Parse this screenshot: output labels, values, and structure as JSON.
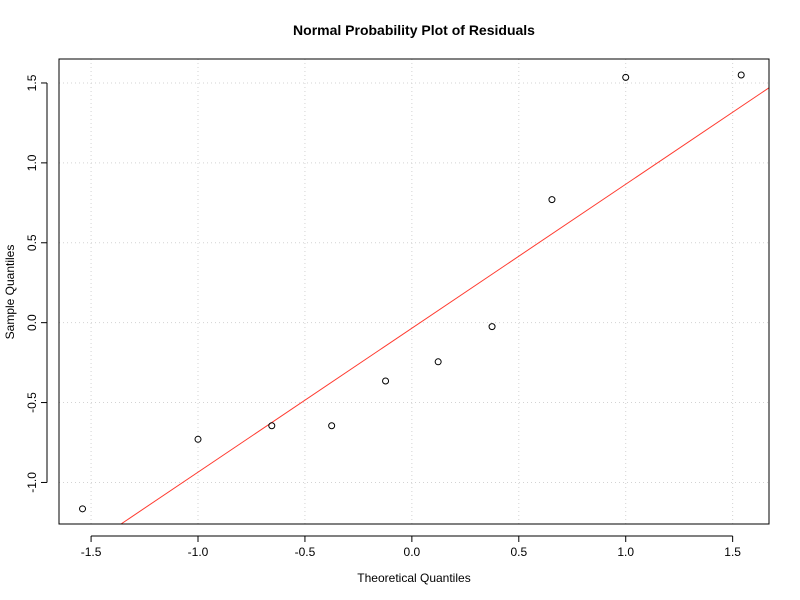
{
  "chart_data": {
    "type": "scatter",
    "title": "Normal Probability Plot of Residuals",
    "xlabel": "Theoretical Quantiles",
    "ylabel": "Sample Quantiles",
    "xlim": [
      -1.65,
      1.67
    ],
    "ylim": [
      -1.26,
      1.65
    ],
    "xticks": [
      -1.5,
      -1.0,
      -0.5,
      0.0,
      0.5,
      1.0,
      1.5
    ],
    "xtick_labels": [
      "-1.5",
      "-1.0",
      "-0.5",
      "0.0",
      "0.5",
      "1.0",
      "1.5"
    ],
    "yticks": [
      -1.0,
      -0.5,
      0.0,
      0.5,
      1.0,
      1.5
    ],
    "ytick_labels": [
      "-1.0",
      "-0.5",
      "0.0",
      "0.5",
      "1.0",
      "1.5"
    ],
    "grid": true,
    "series": [
      {
        "type": "scatter",
        "x": [
          -1.54,
          -1.0,
          -0.655,
          -0.375,
          -0.123,
          0.123,
          0.375,
          0.655,
          1.0,
          1.54
        ],
        "y": [
          -1.165,
          -0.73,
          -0.645,
          -0.645,
          -0.365,
          -0.245,
          -0.025,
          0.77,
          1.535,
          1.55
        ],
        "marker": "open-circle",
        "color": "#000000"
      },
      {
        "type": "line",
        "x": [
          -1.36,
          1.67
        ],
        "y": [
          -1.26,
          1.47
        ],
        "color": "#ff3b30"
      }
    ]
  }
}
